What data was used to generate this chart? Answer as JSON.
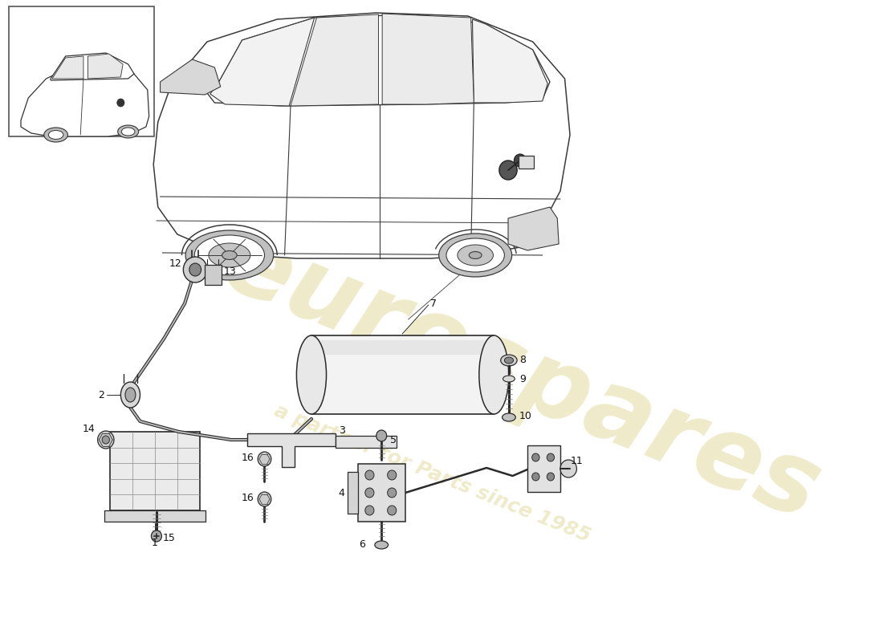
{
  "bg": "#ffffff",
  "line_color": "#2a2a2a",
  "watermark1": "eurospares",
  "watermark2": "a partner for Parts since 1985",
  "wm_color": "#c8b840",
  "wm_alpha": 0.28,
  "fig_w": 11.0,
  "fig_h": 8.0,
  "dpi": 100
}
